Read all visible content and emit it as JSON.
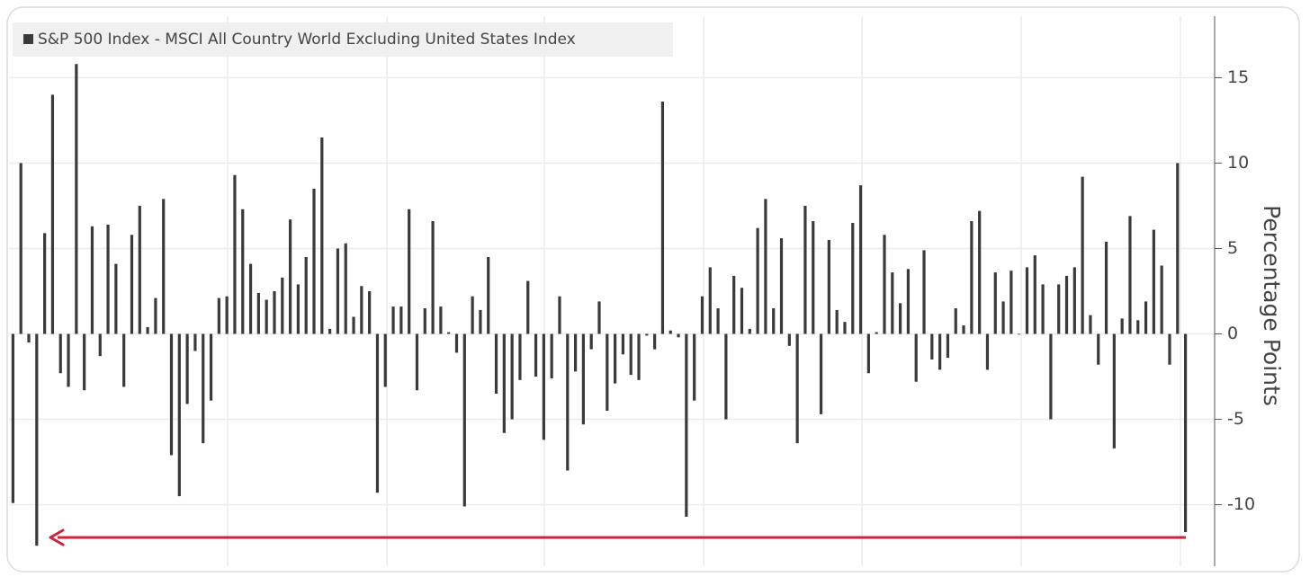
{
  "chart_data": {
    "type": "bar",
    "y_label": "Percentage Points",
    "series": [
      {
        "name": "S&P 500 Index - MSCI All Country World Excluding United States Index",
        "color": "#3a3a3a",
        "values": [
          -9.9,
          10.0,
          -0.5,
          -12.4,
          5.9,
          14.0,
          -2.3,
          -3.1,
          15.8,
          -3.3,
          6.3,
          -1.3,
          6.4,
          4.1,
          -3.1,
          5.8,
          7.5,
          0.4,
          2.1,
          7.9,
          -7.1,
          -9.5,
          -4.1,
          -1.0,
          -6.4,
          -3.9,
          2.1,
          2.2,
          9.3,
          7.3,
          4.1,
          2.4,
          2.0,
          2.5,
          3.3,
          6.7,
          2.9,
          4.5,
          8.5,
          11.5,
          0.3,
          5.0,
          5.3,
          1.0,
          2.8,
          2.5,
          -9.3,
          -3.1,
          1.6,
          1.6,
          7.3,
          -3.3,
          1.5,
          6.6,
          1.6,
          0.1,
          -1.1,
          -10.1,
          2.2,
          1.4,
          4.5,
          -3.5,
          -5.8,
          -5.0,
          -2.7,
          3.1,
          -2.5,
          -6.2,
          -2.6,
          2.2,
          -8.0,
          -2.2,
          -5.3,
          -0.9,
          1.9,
          -4.5,
          -2.9,
          -1.2,
          -2.4,
          -2.7,
          -0.1,
          -0.9,
          13.6,
          0.2,
          -0.2,
          -10.7,
          -3.9,
          2.2,
          3.9,
          1.5,
          -5.0,
          3.4,
          2.7,
          0.3,
          6.2,
          7.9,
          1.5,
          5.6,
          -0.7,
          -6.4,
          7.5,
          6.6,
          -4.7,
          5.5,
          1.4,
          0.7,
          6.5,
          8.7,
          -2.3,
          0.1,
          5.8,
          3.6,
          1.8,
          3.8,
          -2.8,
          4.9,
          -1.5,
          -2.1,
          -1.4,
          1.5,
          0.5,
          6.6,
          7.2,
          -2.1,
          3.6,
          1.9,
          3.7,
          0.0,
          3.9,
          4.6,
          2.9,
          -5.0,
          2.9,
          3.4,
          3.9,
          9.2,
          1.1,
          -1.8,
          5.4,
          -6.7,
          0.9,
          6.9,
          0.8,
          1.9,
          6.1,
          4.0,
          -1.8,
          10.0,
          -11.6
        ]
      }
    ],
    "ylim": [
      -13.6,
      18.6
    ],
    "yticks": [
      -10,
      -5,
      0,
      5,
      10,
      15
    ],
    "grid": true
  }
}
